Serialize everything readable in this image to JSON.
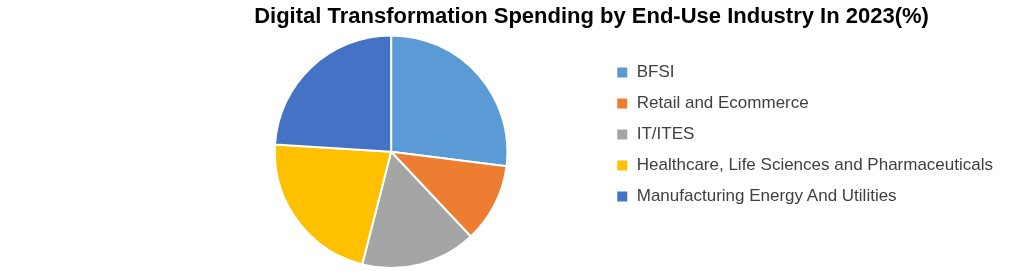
{
  "chart_data": {
    "type": "pie",
    "title": "Digital Transformation Spending by End-Use Industry In 2023(%)",
    "categories": [
      "BFSI",
      "Retail and Ecommerce",
      "IT/ITES",
      "Healthcare, Life Sciences and Pharmaceuticals",
      "Manufacturing Energy And Utilities"
    ],
    "values": [
      27,
      11,
      16,
      22,
      24
    ],
    "colors": [
      "#5b9bd5",
      "#ed7d31",
      "#a5a5a5",
      "#ffc000",
      "#4472c4"
    ],
    "legend": "right"
  }
}
